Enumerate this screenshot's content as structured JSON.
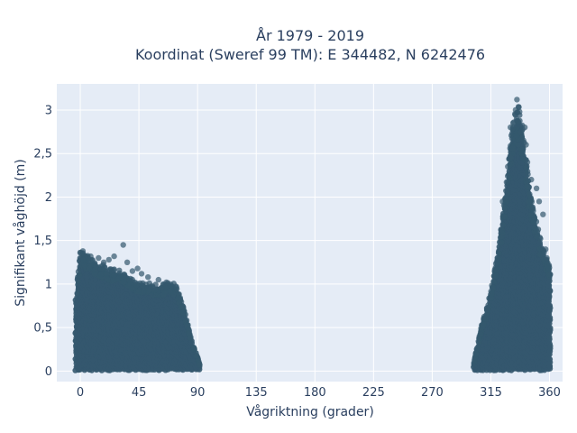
{
  "chart_data": {
    "type": "scatter",
    "title_line1": "År 1979 - 2019",
    "title_line2": "Koordinat (Sweref 99 TM): E 344482, N 6242476",
    "xlabel": "Vågriktning (grader)",
    "ylabel": "Signifikant våghöjd (m)",
    "xlim": [
      -18,
      370
    ],
    "ylim": [
      -0.12,
      3.3
    ],
    "x_ticks": [
      0,
      45,
      90,
      135,
      180,
      225,
      270,
      315,
      360
    ],
    "x_tick_labels": [
      "0",
      "45",
      "90",
      "135",
      "180",
      "225",
      "270",
      "315",
      "360"
    ],
    "y_ticks": [
      0,
      0.5,
      1,
      1.5,
      2,
      2.5,
      3
    ],
    "y_tick_labels": [
      "0",
      "0,5",
      "1",
      "1,5",
      "2",
      "2,5",
      "3"
    ],
    "grid": true,
    "colors": {
      "plot_bg": "#e5ecf6",
      "grid": "#ffffff",
      "marker": "#34586e"
    },
    "envelopes": [
      {
        "name": "",
        "x": [
          -3,
          0,
          3,
          8,
          15,
          22,
          30,
          40,
          48,
          55,
          62,
          66,
          70,
          74,
          78,
          82,
          86,
          90,
          92
        ],
        "ymax": [
          0.85,
          1.3,
          1.3,
          1.22,
          1.18,
          1.12,
          1.1,
          1.0,
          0.98,
          0.95,
          0.93,
          0.96,
          0.98,
          0.92,
          0.75,
          0.55,
          0.3,
          0.15,
          0.05
        ]
      },
      {
        "name": "",
        "x": [
          302,
          305,
          308,
          312,
          316,
          320,
          324,
          328,
          332,
          336,
          340,
          344,
          348,
          352,
          356,
          360
        ],
        "ymax": [
          0.1,
          0.3,
          0.5,
          0.7,
          0.95,
          1.25,
          1.7,
          2.2,
          2.75,
          2.9,
          2.6,
          2.05,
          1.75,
          1.5,
          1.3,
          1.15
        ]
      }
    ],
    "outliers": [
      {
        "x": 0,
        "y": 1.36
      },
      {
        "x": 2,
        "y": 1.38
      },
      {
        "x": 8,
        "y": 1.32
      },
      {
        "x": 14,
        "y": 1.3
      },
      {
        "x": 18,
        "y": 1.25
      },
      {
        "x": 22,
        "y": 1.28
      },
      {
        "x": 26,
        "y": 1.32
      },
      {
        "x": 33,
        "y": 1.45
      },
      {
        "x": 36,
        "y": 1.25
      },
      {
        "x": 40,
        "y": 1.15
      },
      {
        "x": 44,
        "y": 1.18
      },
      {
        "x": 47,
        "y": 1.12
      },
      {
        "x": 52,
        "y": 1.08
      },
      {
        "x": 60,
        "y": 1.05
      },
      {
        "x": 66,
        "y": 1.02
      },
      {
        "x": 330,
        "y": 2.8
      },
      {
        "x": 332,
        "y": 2.85
      },
      {
        "x": 334,
        "y": 3.0
      },
      {
        "x": 335,
        "y": 3.12
      },
      {
        "x": 337,
        "y": 2.98
      },
      {
        "x": 338,
        "y": 2.75
      },
      {
        "x": 340,
        "y": 2.65
      },
      {
        "x": 342,
        "y": 2.6
      },
      {
        "x": 343,
        "y": 2.4
      },
      {
        "x": 346,
        "y": 2.2
      },
      {
        "x": 350,
        "y": 2.1
      },
      {
        "x": 352,
        "y": 1.95
      },
      {
        "x": 355,
        "y": 1.8
      },
      {
        "x": 357,
        "y": 1.4
      },
      {
        "x": 358,
        "y": 1.3
      },
      {
        "x": 324,
        "y": 1.95
      },
      {
        "x": 328,
        "y": 2.35
      },
      {
        "x": 330,
        "y": 2.45
      },
      {
        "x": 336,
        "y": 2.6
      },
      {
        "x": 341,
        "y": 2.8
      }
    ]
  }
}
